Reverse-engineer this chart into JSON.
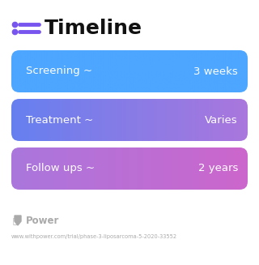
{
  "title": "Timeline",
  "title_fontsize": 18,
  "title_color": "#111111",
  "background_color": "#ffffff",
  "icon_color": "#7755ee",
  "rows": [
    {
      "label": "Screening ~",
      "value": "3 weeks",
      "color_left": "#4da6ff",
      "color_right": "#4da6ff"
    },
    {
      "label": "Treatment ~",
      "value": "Varies",
      "color_left": "#6680f0",
      "color_right": "#aa77dd"
    },
    {
      "label": "Follow ups ~",
      "value": "2 years",
      "color_left": "#aa77dd",
      "color_right": "#cc66cc"
    }
  ],
  "text_color": "#ffffff",
  "label_fontsize": 9.5,
  "value_fontsize": 9.5,
  "footer_text": "Power",
  "footer_color": "#aaaaaa",
  "footer_url": "www.withpower.com/trial/phase-3-liposarcoma-5-2020-33552",
  "footer_url_fontsize": 4.8,
  "footer_logo_fontsize": 8.5
}
